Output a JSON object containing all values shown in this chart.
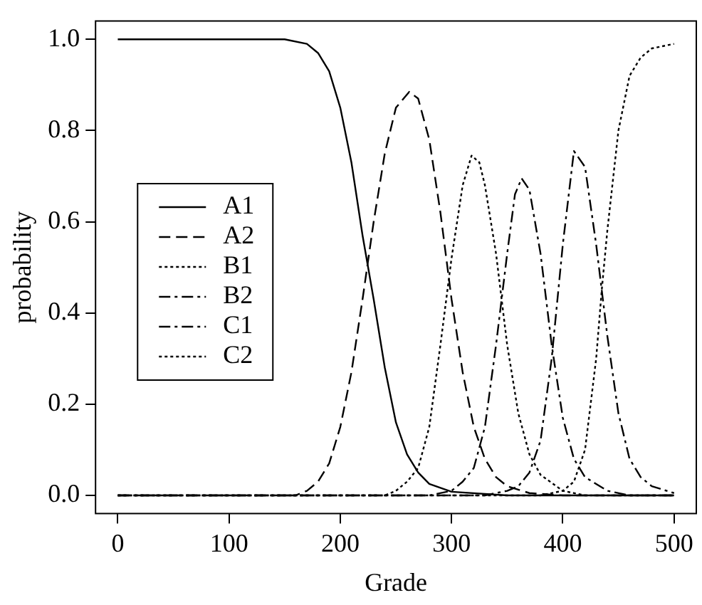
{
  "chart_data": {
    "type": "line",
    "xlabel": "Grade",
    "ylabel": "probability",
    "xlim": [
      -20,
      520
    ],
    "ylim": [
      -0.04,
      1.04
    ],
    "xticks": [
      0,
      100,
      200,
      300,
      400,
      500
    ],
    "yticks": [
      {
        "value": 0,
        "label": "0.0"
      },
      0.2,
      0.4,
      0.6,
      0.8,
      {
        "value": 1,
        "label": "1.0"
      }
    ],
    "grid": false,
    "legend": "left",
    "marker": "none",
    "series": [
      {
        "name": "A1",
        "color": "#000000",
        "line_style": "solid",
        "x": [
          0,
          150,
          170,
          180,
          190,
          200,
          210,
          220,
          230,
          240,
          250,
          260,
          270,
          280,
          300,
          350,
          500
        ],
        "values": [
          1,
          1,
          0.99,
          0.97,
          0.93,
          0.85,
          0.73,
          0.57,
          0.43,
          0.28,
          0.16,
          0.09,
          0.05,
          0.025,
          0.008,
          0,
          0
        ]
      },
      {
        "name": "A2",
        "color": "#000000",
        "line_style": "dashed",
        "x": [
          0,
          160,
          170,
          180,
          190,
          200,
          210,
          220,
          230,
          240,
          250,
          262,
          270,
          280,
          290,
          300,
          310,
          320,
          330,
          340,
          350,
          370,
          400,
          500
        ],
        "values": [
          0,
          0,
          0.01,
          0.03,
          0.07,
          0.15,
          0.27,
          0.43,
          0.6,
          0.75,
          0.85,
          0.885,
          0.87,
          0.78,
          0.62,
          0.43,
          0.27,
          0.15,
          0.08,
          0.04,
          0.02,
          0.005,
          0,
          0
        ]
      },
      {
        "name": "B1",
        "color": "#000000",
        "line_style": "dotted",
        "x": [
          0,
          240,
          250,
          260,
          270,
          280,
          290,
          300,
          310,
          318,
          325,
          330,
          340,
          350,
          360,
          370,
          380,
          400,
          420,
          500
        ],
        "values": [
          0,
          0,
          0.01,
          0.03,
          0.06,
          0.15,
          0.33,
          0.52,
          0.68,
          0.745,
          0.73,
          0.68,
          0.53,
          0.33,
          0.18,
          0.09,
          0.045,
          0.01,
          0,
          0
        ]
      },
      {
        "name": "B2",
        "color": "#000000",
        "line_style": "dashdot",
        "x": [
          0,
          280,
          300,
          310,
          320,
          330,
          340,
          350,
          357,
          363,
          370,
          380,
          390,
          400,
          410,
          420,
          440,
          460,
          500
        ],
        "values": [
          0,
          0,
          0.01,
          0.03,
          0.06,
          0.15,
          0.33,
          0.53,
          0.66,
          0.695,
          0.67,
          0.53,
          0.33,
          0.17,
          0.08,
          0.04,
          0.01,
          0,
          0
        ]
      },
      {
        "name": "C1",
        "color": "#000000",
        "line_style": "dashdot",
        "x": [
          0,
          330,
          350,
          360,
          370,
          380,
          390,
          400,
          410,
          420,
          430,
          440,
          450,
          460,
          470,
          480,
          500
        ],
        "values": [
          0,
          0,
          0.01,
          0.02,
          0.05,
          0.12,
          0.3,
          0.55,
          0.755,
          0.72,
          0.55,
          0.35,
          0.18,
          0.08,
          0.04,
          0.02,
          0.005
        ]
      },
      {
        "name": "C2",
        "color": "#000000",
        "line_style": "dotted",
        "x": [
          0,
          380,
          400,
          410,
          420,
          430,
          435,
          440,
          450,
          460,
          470,
          480,
          500
        ],
        "values": [
          0,
          0,
          0.01,
          0.03,
          0.1,
          0.3,
          0.45,
          0.58,
          0.8,
          0.92,
          0.96,
          0.98,
          0.99
        ]
      }
    ]
  }
}
